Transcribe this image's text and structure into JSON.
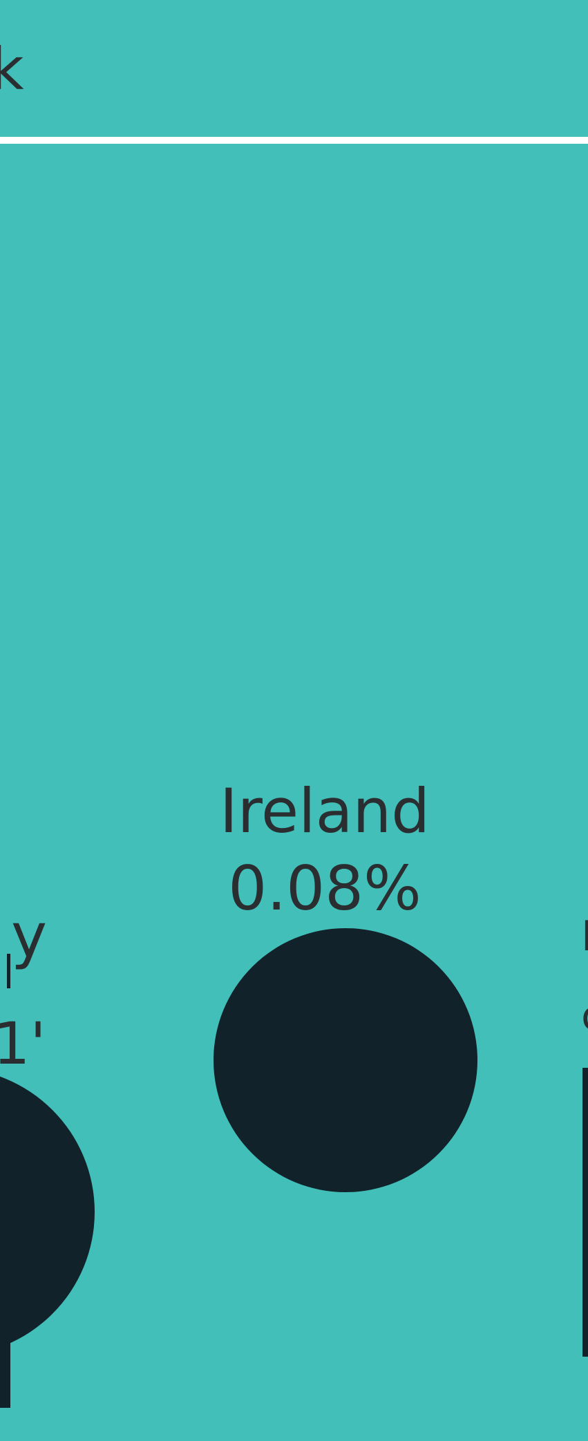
{
  "colors": {
    "background": "#42bfb9",
    "text": "#2a2e31",
    "bubble": "#11222a",
    "divider": "#ffffff"
  },
  "header": {
    "partial_glyph": "k"
  },
  "bubbles": [
    {
      "country_fragment": "y",
      "value_fragment": "1'",
      "partial": true
    },
    {
      "country": "Ireland",
      "value": "0.08%"
    },
    {
      "country_fragment": "I",
      "value_fragment": "c",
      "partial": true
    }
  ]
}
